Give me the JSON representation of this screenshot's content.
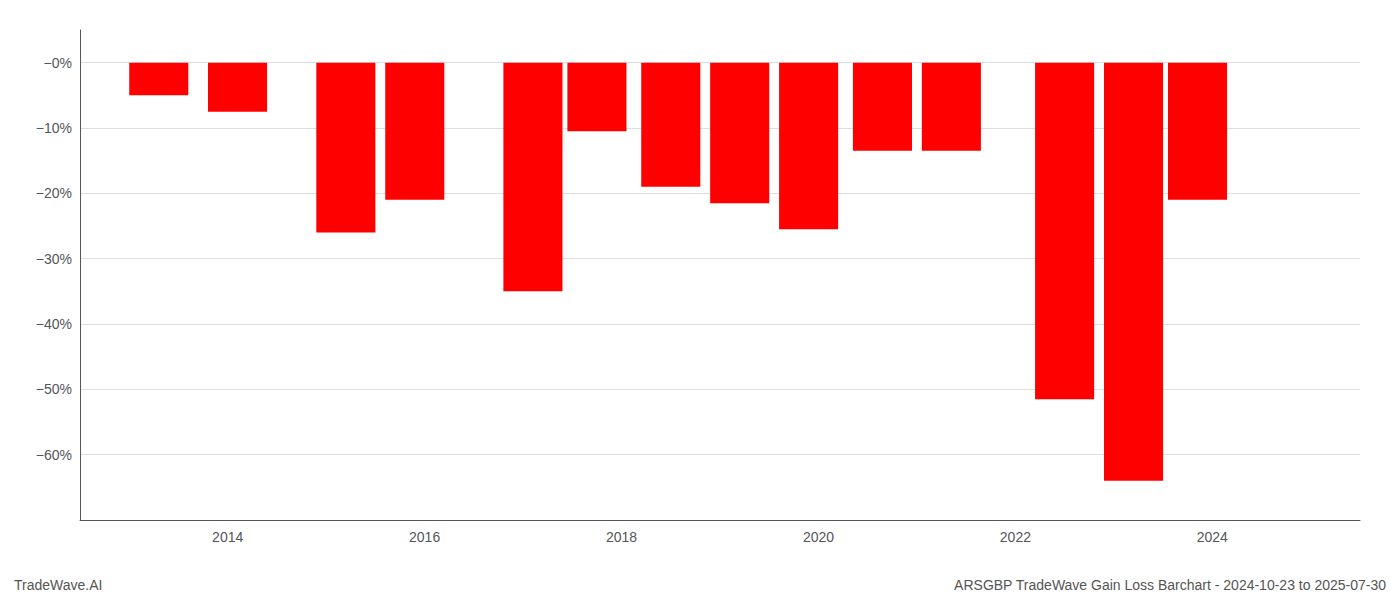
{
  "chart_data": {
    "type": "bar",
    "x": [
      2013.3,
      2014.1,
      2015.2,
      2015.9,
      2017.1,
      2017.75,
      2018.5,
      2019.2,
      2019.9,
      2020.65,
      2021.35,
      2022.5,
      2023.2,
      2023.85
    ],
    "values": [
      -5.0,
      -7.5,
      -26.0,
      -21.0,
      -35.0,
      -10.5,
      -19.0,
      -21.5,
      -25.5,
      -13.5,
      -13.5,
      -51.5,
      -64.0,
      -21.0
    ],
    "color": "#ff0000",
    "xlim": [
      2012.5,
      2025.5
    ],
    "xticks": [
      2014,
      2016,
      2018,
      2020,
      2022,
      2024
    ],
    "ylim": [
      -70,
      5
    ],
    "yticks": [
      {
        "value": 0,
        "label": "−0%"
      },
      {
        "value": -10,
        "label": "−10%"
      },
      {
        "value": -20,
        "label": "−20%"
      },
      {
        "value": -30,
        "label": "−30%"
      },
      {
        "value": -40,
        "label": "−40%"
      },
      {
        "value": -50,
        "label": "−50%"
      },
      {
        "value": -60,
        "label": "−60%"
      }
    ],
    "grid": true,
    "annotations": [
      "TradeWave.AI",
      "ARSGBP TradeWave Gain Loss Barchart - 2024-10-23 to 2025-07-30"
    ]
  }
}
